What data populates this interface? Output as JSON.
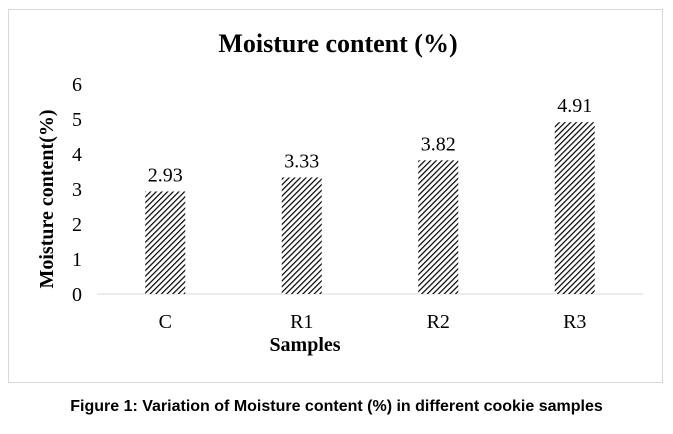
{
  "chart_data": {
    "type": "bar",
    "title": "Moisture content (%)",
    "xlabel": "Samples",
    "ylabel": "Moisture content(%)",
    "categories": [
      "C",
      "R1",
      "R2",
      "R3"
    ],
    "values": [
      2.93,
      3.33,
      3.82,
      4.91
    ],
    "data_labels": [
      "2.93",
      "3.33",
      "3.82",
      "4.91"
    ],
    "ylim": [
      0,
      6
    ],
    "yticks": [
      "0",
      "1",
      "2",
      "3",
      "4",
      "5",
      "6"
    ],
    "grid": false,
    "bar_pattern": "diagonal-hatch",
    "colors": {
      "bar_hatch": "#000000",
      "bar_bg": "#ffffff",
      "axis": "#d9d9d9"
    }
  },
  "caption": "Figure 1: Variation of Moisture content (%) in different cookie samples"
}
